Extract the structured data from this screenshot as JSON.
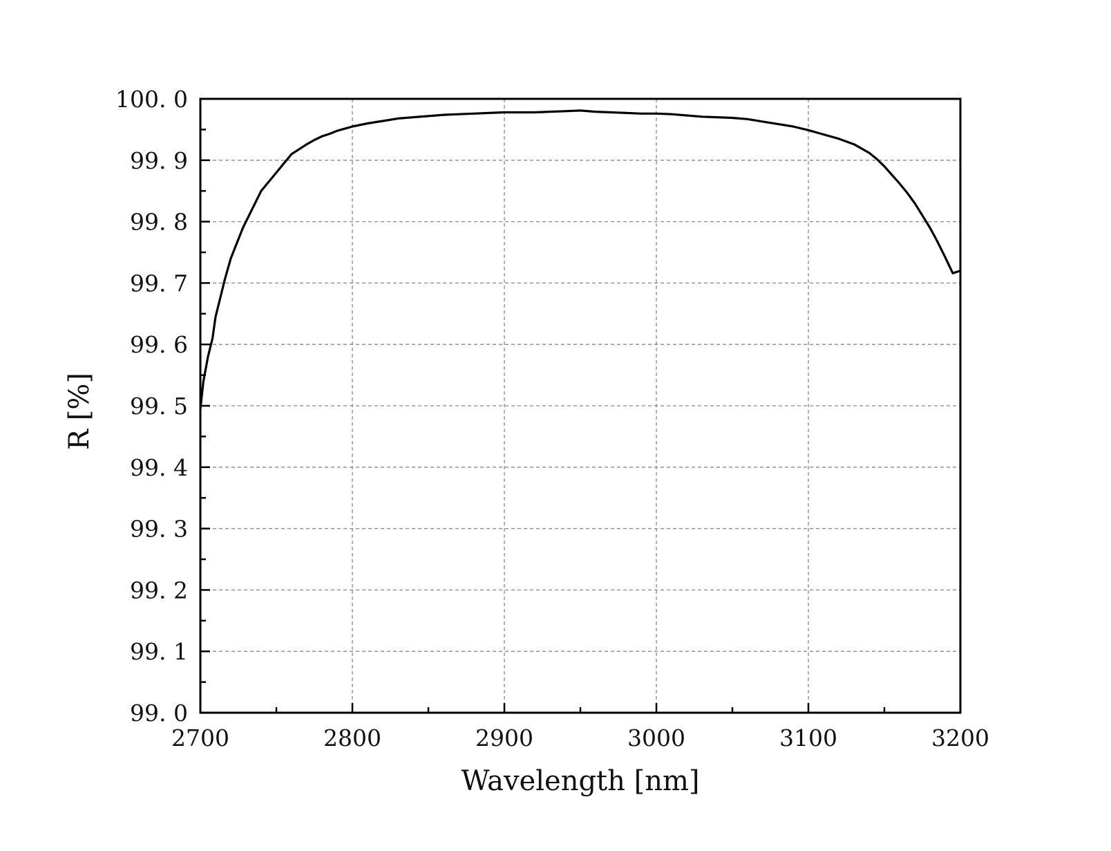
{
  "chart_data": {
    "type": "line",
    "title": "",
    "xlabel": "Wavelength [nm]",
    "ylabel": "R [%]",
    "xlim": [
      2700,
      3200
    ],
    "ylim": [
      99.0,
      100.0
    ],
    "xticks": [
      2700,
      2800,
      2900,
      3000,
      3100,
      3200
    ],
    "yticks": [
      99.0,
      99.1,
      99.2,
      99.3,
      99.4,
      99.5,
      99.6,
      99.7,
      99.8,
      99.9,
      100.0
    ],
    "xtick_labels": [
      "2700",
      "2800",
      "2900",
      "3000",
      "3100",
      "3200"
    ],
    "ytick_labels": [
      "99. 0",
      "99. 1",
      "99. 2",
      "99. 3",
      "99. 4",
      "99. 5",
      "99. 6",
      "99. 7",
      "99. 8",
      "99. 9",
      "100. 0"
    ],
    "grid": true,
    "series": [
      {
        "color": "#000000",
        "x": [
          2700,
          2702,
          2705,
          2708,
          2710,
          2713,
          2716,
          2720,
          2724,
          2728,
          2732,
          2736,
          2740,
          2745,
          2750,
          2755,
          2760,
          2765,
          2770,
          2775,
          2780,
          2785,
          2790,
          2800,
          2810,
          2820,
          2830,
          2840,
          2850,
          2860,
          2870,
          2880,
          2890,
          2900,
          2910,
          2920,
          2930,
          2940,
          2950,
          2960,
          2970,
          2980,
          2990,
          3000,
          3010,
          3020,
          3030,
          3040,
          3050,
          3060,
          3070,
          3080,
          3090,
          3100,
          3110,
          3120,
          3130,
          3140,
          3145,
          3150,
          3155,
          3160,
          3165,
          3170,
          3175,
          3180,
          3185,
          3190,
          3195,
          3200
        ],
        "y": [
          99.495,
          99.54,
          99.58,
          99.61,
          99.645,
          99.675,
          99.705,
          99.74,
          99.765,
          99.79,
          99.81,
          99.83,
          99.85,
          99.865,
          99.88,
          99.895,
          99.91,
          99.918,
          99.926,
          99.933,
          99.939,
          99.943,
          99.948,
          99.955,
          99.96,
          99.964,
          99.968,
          99.97,
          99.972,
          99.974,
          99.975,
          99.976,
          99.977,
          99.978,
          99.978,
          99.978,
          99.979,
          99.98,
          99.981,
          99.979,
          99.978,
          99.977,
          99.976,
          99.976,
          99.975,
          99.973,
          99.971,
          99.97,
          99.969,
          99.967,
          99.963,
          99.959,
          99.955,
          99.949,
          99.942,
          99.935,
          99.926,
          99.912,
          99.902,
          99.89,
          99.876,
          99.862,
          99.847,
          99.83,
          99.81,
          99.79,
          99.767,
          99.742,
          99.716,
          99.72
        ]
      }
    ]
  }
}
